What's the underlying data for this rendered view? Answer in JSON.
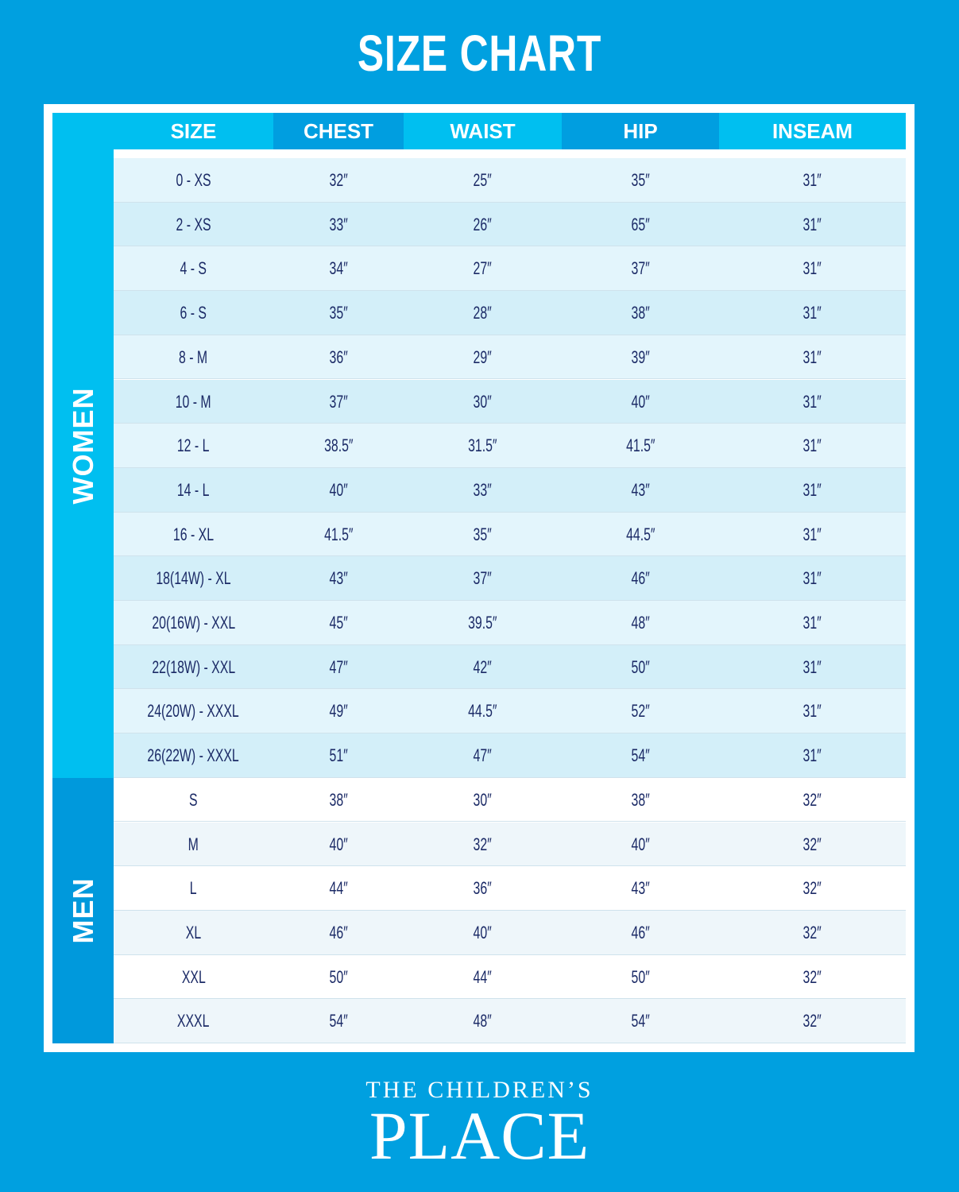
{
  "title": "SIZE CHART",
  "columns": [
    "SIZE",
    "CHEST",
    "WAIST",
    "HIP",
    "INSEAM"
  ],
  "colors": {
    "background": "#00a0e0",
    "header_light": "#00bff0",
    "header_dark": "#009ee0",
    "women_band": "#00bff0",
    "men_band": "#0099dc",
    "text": "#1b2a66"
  },
  "groups": [
    {
      "label": "WOMEN",
      "rows": [
        [
          "0 - XS",
          "32″",
          "25″",
          "35″",
          "31″"
        ],
        [
          "2 - XS",
          "33″",
          "26″",
          "65″",
          "31″"
        ],
        [
          "4 - S",
          "34″",
          "27″",
          "37″",
          "31″"
        ],
        [
          "6 - S",
          "35″",
          "28″",
          "38″",
          "31″"
        ],
        [
          "8 - M",
          "36″",
          "29″",
          "39″",
          "31″"
        ],
        [
          "10 - M",
          "37″",
          "30″",
          "40″",
          "31″"
        ],
        [
          "12 - L",
          "38.5″",
          "31.5″",
          "41.5″",
          "31″"
        ],
        [
          "14 - L",
          "40″",
          "33″",
          "43″",
          "31″"
        ],
        [
          "16 - XL",
          "41.5″",
          "35″",
          "44.5″",
          "31″"
        ],
        [
          "18(14W) - XL",
          "43″",
          "37″",
          "46″",
          "31″"
        ],
        [
          "20(16W) - XXL",
          "45″",
          "39.5″",
          "48″",
          "31″"
        ],
        [
          "22(18W) - XXL",
          "47″",
          "42″",
          "50″",
          "31″"
        ],
        [
          "24(20W) - XXXL",
          "49″",
          "44.5″",
          "52″",
          "31″"
        ],
        [
          "26(22W) - XXXL",
          "51″",
          "47″",
          "54″",
          "31″"
        ]
      ]
    },
    {
      "label": "MEN",
      "rows": [
        [
          "S",
          "38″",
          "30″",
          "38″",
          "32″"
        ],
        [
          "M",
          "40″",
          "32″",
          "40″",
          "32″"
        ],
        [
          "L",
          "44″",
          "36″",
          "43″",
          "32″"
        ],
        [
          "XL",
          "46″",
          "40″",
          "46″",
          "32″"
        ],
        [
          "XXL",
          "50″",
          "44″",
          "50″",
          "32″"
        ],
        [
          "XXXL",
          "54″",
          "48″",
          "54″",
          "32″"
        ]
      ]
    }
  ],
  "logo": {
    "line1": "THE CHILDREN’S",
    "line2": "PLACE"
  }
}
